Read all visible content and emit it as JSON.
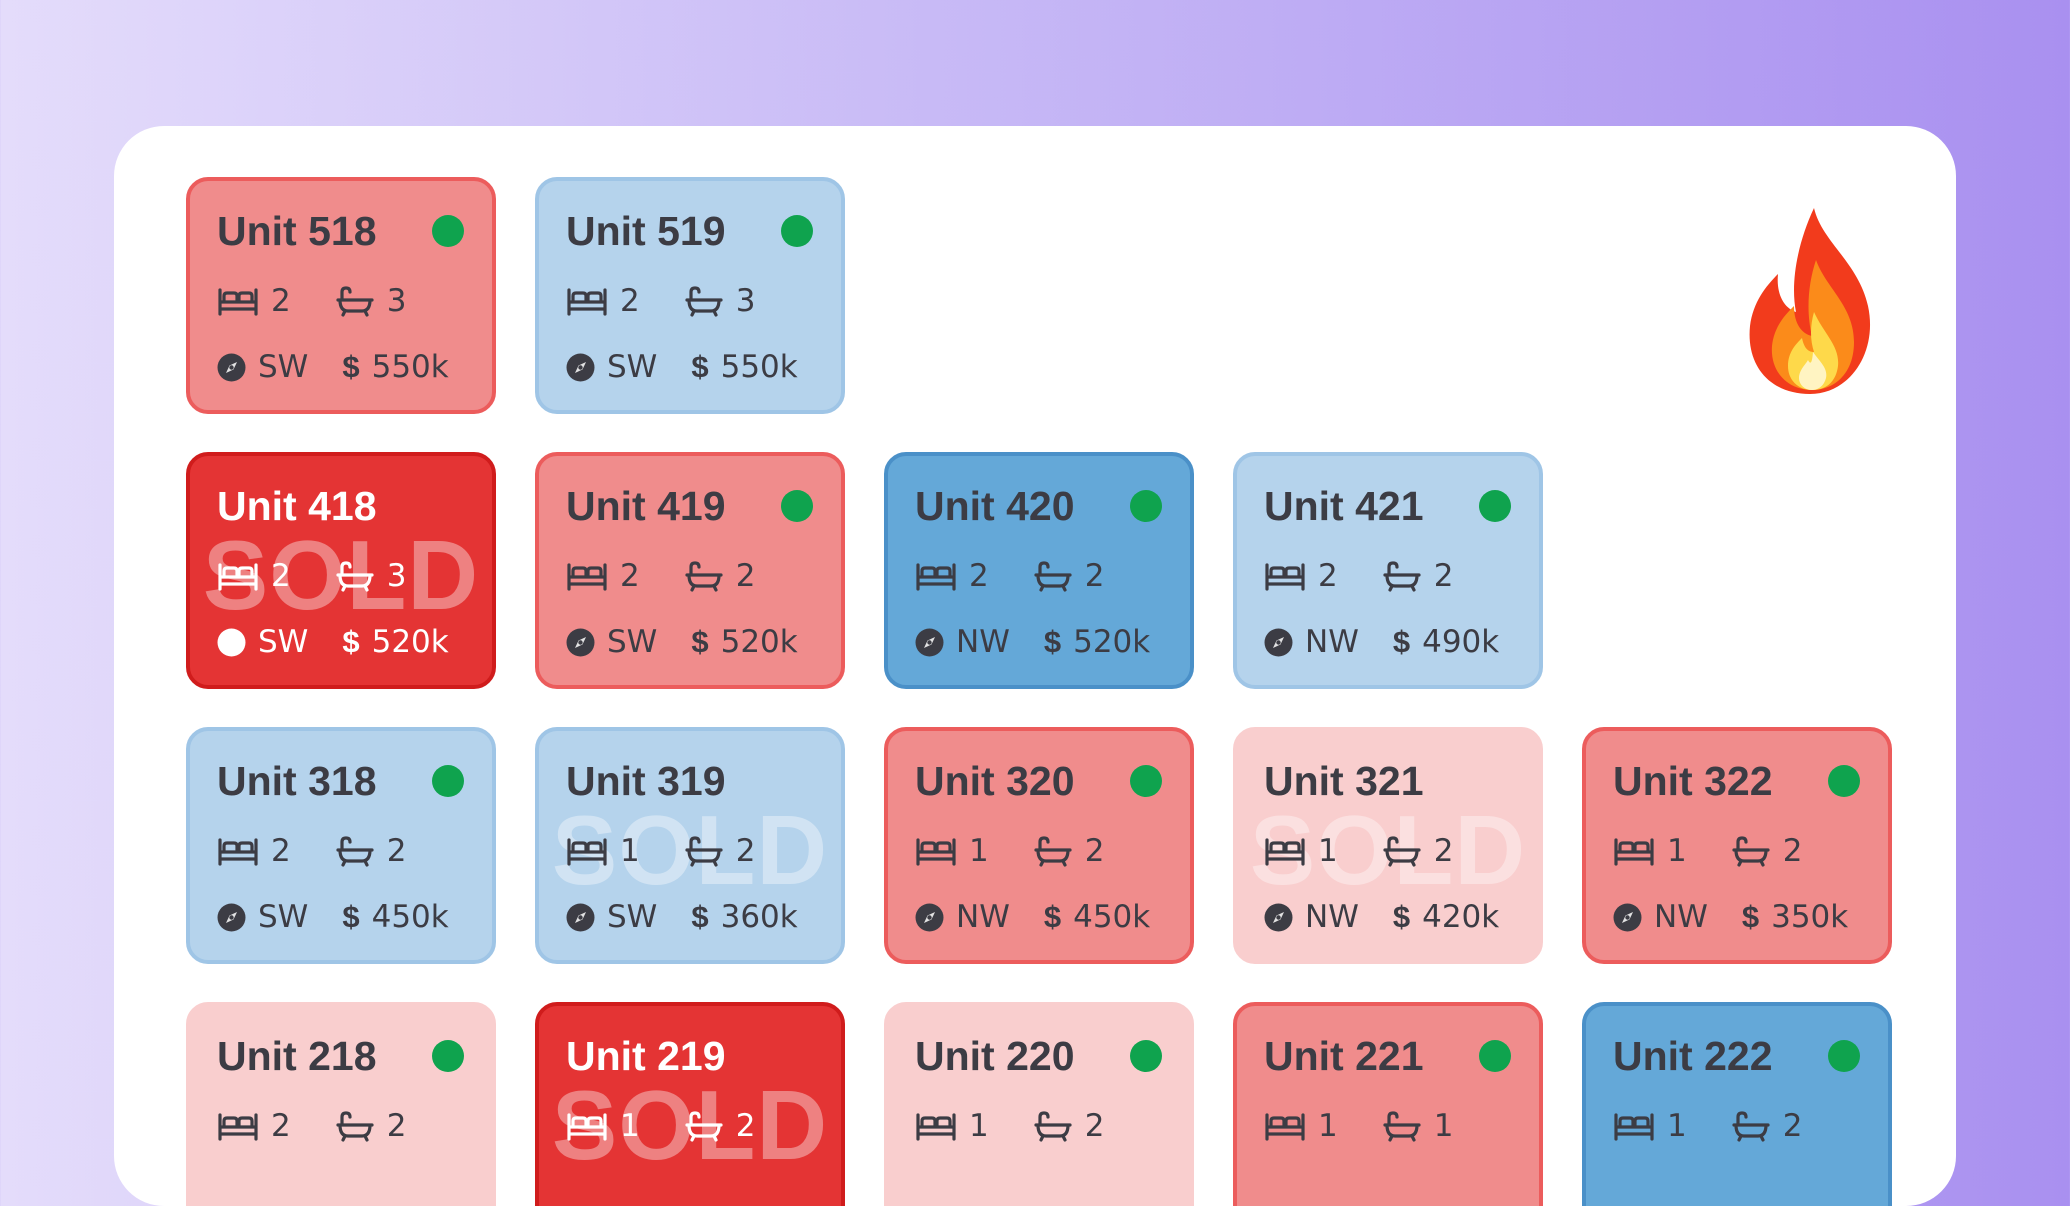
{
  "page_icon": "fire-emoji",
  "colors": {
    "red": "#f08c8c",
    "light_blue": "#b5d3ec",
    "blue": "#64a8d8",
    "pink": "#f9cece",
    "sold_red": "#e43434",
    "available_dot": "#0fa34e"
  },
  "sold_label": "SOLD",
  "floors": [
    {
      "units": [
        {
          "name": "Unit 518",
          "beds": "2",
          "baths": "3",
          "orientation": "SW",
          "currency": "$",
          "price": "550k",
          "status": "available",
          "color": "red"
        },
        {
          "name": "Unit 519",
          "beds": "2",
          "baths": "3",
          "orientation": "SW",
          "currency": "$",
          "price": "550k",
          "status": "available",
          "color": "light_blue"
        }
      ]
    },
    {
      "units": [
        {
          "name": "Unit 418",
          "beds": "2",
          "baths": "3",
          "orientation": "SW",
          "currency": "$",
          "price": "520k",
          "status": "sold",
          "color": "sold_red"
        },
        {
          "name": "Unit 419",
          "beds": "2",
          "baths": "2",
          "orientation": "SW",
          "currency": "$",
          "price": "520k",
          "status": "available",
          "color": "red"
        },
        {
          "name": "Unit 420",
          "beds": "2",
          "baths": "2",
          "orientation": "NW",
          "currency": "$",
          "price": "520k",
          "status": "available",
          "color": "blue"
        },
        {
          "name": "Unit 421",
          "beds": "2",
          "baths": "2",
          "orientation": "NW",
          "currency": "$",
          "price": "490k",
          "status": "available",
          "color": "light_blue"
        }
      ]
    },
    {
      "units": [
        {
          "name": "Unit 318",
          "beds": "2",
          "baths": "2",
          "orientation": "SW",
          "currency": "$",
          "price": "450k",
          "status": "available",
          "color": "light_blue"
        },
        {
          "name": "Unit 319",
          "beds": "1",
          "baths": "2",
          "orientation": "SW",
          "currency": "$",
          "price": "360k",
          "status": "sold",
          "color": "light_blue"
        },
        {
          "name": "Unit 320",
          "beds": "1",
          "baths": "2",
          "orientation": "NW",
          "currency": "$",
          "price": "450k",
          "status": "available",
          "color": "red"
        },
        {
          "name": "Unit 321",
          "beds": "1",
          "baths": "2",
          "orientation": "NW",
          "currency": "$",
          "price": "420k",
          "status": "sold",
          "color": "pink"
        },
        {
          "name": "Unit 322",
          "beds": "1",
          "baths": "2",
          "orientation": "NW",
          "currency": "$",
          "price": "350k",
          "status": "available",
          "color": "red"
        }
      ]
    },
    {
      "units": [
        {
          "name": "Unit 218",
          "beds": "2",
          "baths": "2",
          "status": "available",
          "color": "pink"
        },
        {
          "name": "Unit 219",
          "beds": "1",
          "baths": "2",
          "status": "sold",
          "color": "sold_red"
        },
        {
          "name": "Unit 220",
          "beds": "1",
          "baths": "2",
          "status": "available",
          "color": "pink"
        },
        {
          "name": "Unit 221",
          "beds": "1",
          "baths": "1",
          "status": "available",
          "color": "red"
        },
        {
          "name": "Unit 222",
          "beds": "1",
          "baths": "2",
          "status": "available",
          "color": "blue"
        }
      ]
    }
  ]
}
